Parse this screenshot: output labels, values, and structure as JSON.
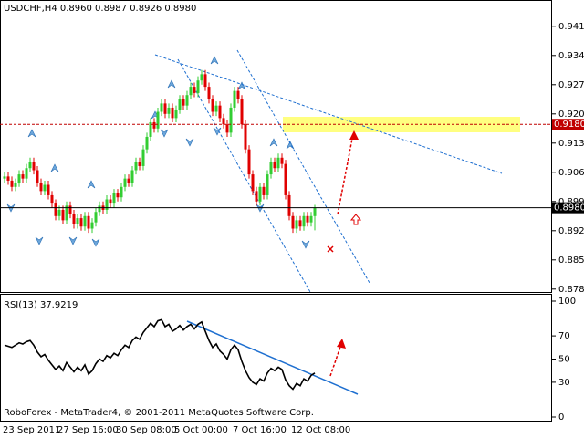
{
  "chart_data": [
    {
      "type": "candlestick",
      "title": "USDCHF,H4  0.8960 0.8987 0.8926 0.8980",
      "categories": [
        "23 Sep 2011",
        null,
        null,
        null,
        null,
        null,
        null,
        null,
        null,
        null,
        null,
        null,
        null,
        null,
        null,
        "27 Sep 16:00",
        null,
        null,
        null,
        null,
        null,
        null,
        null,
        null,
        null,
        null,
        null,
        null,
        null,
        null,
        null,
        "30 Sep 08:00",
        null,
        null,
        null,
        null,
        null,
        null,
        null,
        null,
        null,
        null,
        null,
        null,
        null,
        null,
        null,
        "5 Oct 00:00",
        null,
        null,
        null,
        null,
        null,
        null,
        null,
        null,
        null,
        null,
        null,
        null,
        null,
        null,
        null,
        "7 Oct 16:00",
        null,
        null,
        null,
        null,
        null,
        null,
        null,
        null,
        null,
        null,
        null,
        null,
        null,
        null,
        null,
        "12 Oct 08:00",
        null,
        null,
        null,
        null,
        null,
        null
      ],
      "open": [
        0.905,
        0.9055,
        0.9045,
        0.903,
        0.904,
        0.906,
        0.905,
        0.9075,
        0.909,
        0.907,
        0.904,
        0.902,
        0.9035,
        0.901,
        0.899,
        0.896,
        0.8975,
        0.895,
        0.8985,
        0.8965,
        0.894,
        0.8955,
        0.8935,
        0.896,
        0.893,
        0.8945,
        0.897,
        0.8985,
        0.8975,
        0.9,
        0.899,
        0.9015,
        0.9005,
        0.903,
        0.905,
        0.904,
        0.907,
        0.909,
        0.908,
        0.912,
        0.915,
        0.9185,
        0.917,
        0.921,
        0.923,
        0.9205,
        0.922,
        0.9195,
        0.9215,
        0.924,
        0.9225,
        0.925,
        0.927,
        0.9255,
        0.9285,
        0.93,
        0.927,
        0.924,
        0.921,
        0.9225,
        0.9195,
        0.918,
        0.916,
        0.922,
        0.926,
        0.924,
        0.918,
        0.912,
        0.906,
        0.902,
        0.8995,
        0.903,
        0.901,
        0.906,
        0.909,
        0.9075,
        0.91,
        0.9085,
        0.901,
        0.896,
        0.893,
        0.895,
        0.8935,
        0.896,
        0.8945,
        0.896
      ],
      "high": [
        0.9065,
        0.9065,
        0.9055,
        0.905,
        0.907,
        0.907,
        0.9085,
        0.91,
        0.91,
        0.908,
        0.905,
        0.9045,
        0.9045,
        0.902,
        0.9,
        0.8985,
        0.8985,
        0.8995,
        0.8995,
        0.8975,
        0.8965,
        0.8965,
        0.897,
        0.897,
        0.8955,
        0.898,
        0.8995,
        0.8995,
        0.901,
        0.901,
        0.9025,
        0.9025,
        0.904,
        0.906,
        0.906,
        0.908,
        0.91,
        0.91,
        0.913,
        0.916,
        0.9195,
        0.9195,
        0.922,
        0.924,
        0.924,
        0.923,
        0.923,
        0.9225,
        0.925,
        0.925,
        0.926,
        0.928,
        0.928,
        0.9295,
        0.931,
        0.931,
        0.928,
        0.925,
        0.9235,
        0.9235,
        0.9205,
        0.919,
        0.923,
        0.927,
        0.927,
        0.925,
        0.919,
        0.913,
        0.907,
        0.903,
        0.904,
        0.904,
        0.907,
        0.91,
        0.91,
        0.911,
        0.911,
        0.9095,
        0.902,
        0.897,
        0.896,
        0.896,
        0.897,
        0.897,
        0.897,
        0.8987
      ],
      "low": [
        0.904,
        0.9035,
        0.902,
        0.902,
        0.903,
        0.904,
        0.904,
        0.9065,
        0.906,
        0.903,
        0.901,
        0.901,
        0.9,
        0.898,
        0.895,
        0.895,
        0.894,
        0.894,
        0.8955,
        0.893,
        0.893,
        0.8925,
        0.8925,
        0.892,
        0.892,
        0.8935,
        0.896,
        0.8965,
        0.8965,
        0.898,
        0.898,
        0.8995,
        0.8995,
        0.902,
        0.903,
        0.903,
        0.906,
        0.907,
        0.907,
        0.911,
        0.914,
        0.916,
        0.916,
        0.92,
        0.9195,
        0.9195,
        0.9185,
        0.9185,
        0.9205,
        0.9215,
        0.9215,
        0.924,
        0.9245,
        0.9245,
        0.9275,
        0.926,
        0.923,
        0.92,
        0.92,
        0.9185,
        0.917,
        0.915,
        0.915,
        0.921,
        0.923,
        0.917,
        0.911,
        0.905,
        0.901,
        0.8985,
        0.8985,
        0.9,
        0.9,
        0.905,
        0.9065,
        0.9065,
        0.9075,
        0.9,
        0.895,
        0.892,
        0.892,
        0.8925,
        0.8925,
        0.8935,
        0.8935,
        0.8926
      ],
      "close": [
        0.9055,
        0.9045,
        0.903,
        0.904,
        0.906,
        0.905,
        0.9075,
        0.909,
        0.907,
        0.904,
        0.902,
        0.9035,
        0.901,
        0.899,
        0.896,
        0.8975,
        0.895,
        0.8985,
        0.8965,
        0.894,
        0.8955,
        0.8935,
        0.896,
        0.893,
        0.8945,
        0.897,
        0.8985,
        0.8975,
        0.9,
        0.899,
        0.9015,
        0.9005,
        0.903,
        0.905,
        0.904,
        0.907,
        0.909,
        0.908,
        0.912,
        0.915,
        0.9185,
        0.917,
        0.921,
        0.923,
        0.9205,
        0.922,
        0.9195,
        0.9215,
        0.924,
        0.9225,
        0.925,
        0.927,
        0.9255,
        0.9285,
        0.93,
        0.927,
        0.924,
        0.921,
        0.9225,
        0.9195,
        0.918,
        0.916,
        0.922,
        0.926,
        0.924,
        0.918,
        0.912,
        0.906,
        0.902,
        0.8995,
        0.903,
        0.901,
        0.906,
        0.909,
        0.9075,
        0.91,
        0.9085,
        0.901,
        0.896,
        0.893,
        0.895,
        0.8935,
        0.896,
        0.8945,
        0.896,
        0.898
      ],
      "up_color": "#32cd32",
      "down_color": "#e00000",
      "ylim": [
        0.8778,
        0.9478
      ],
      "yticks": [
        0.9415,
        0.9345,
        0.9275,
        0.9205,
        0.9135,
        0.9065,
        0.8995,
        0.8925,
        0.8855,
        0.8785
      ],
      "levels": [
        {
          "value": 0.918,
          "label": "0.9180",
          "color": "#c00000"
        },
        {
          "value": 0.898,
          "label": "0.8980",
          "color": "#000000"
        }
      ]
    },
    {
      "type": "line",
      "title": "RSI(13) 37.9219",
      "values": [
        62,
        61,
        60,
        62,
        64,
        63,
        65,
        66,
        62,
        56,
        52,
        54,
        49,
        45,
        41,
        44,
        40,
        47,
        43,
        39,
        43,
        40,
        45,
        37,
        40,
        46,
        50,
        48,
        53,
        51,
        55,
        53,
        58,
        62,
        60,
        66,
        69,
        67,
        73,
        77,
        81,
        78,
        83,
        84,
        78,
        80,
        74,
        76,
        79,
        75,
        78,
        80,
        76,
        80,
        82,
        74,
        66,
        60,
        63,
        57,
        54,
        50,
        58,
        62,
        58,
        48,
        40,
        34,
        30,
        28,
        33,
        31,
        38,
        42,
        40,
        43,
        41,
        32,
        27,
        24,
        29,
        27,
        33,
        31,
        36,
        37.9219
      ],
      "color": "#000000",
      "ylim": [
        0,
        100
      ],
      "yticks": [
        100,
        70,
        50,
        30,
        0
      ]
    }
  ],
  "footer": "RoboForex - MetaTrader4, © 2001-2011 MetaQuotes Software Corp."
}
